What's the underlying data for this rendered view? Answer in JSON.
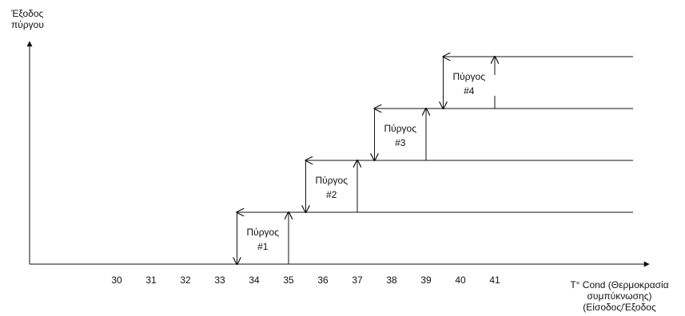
{
  "y_axis_label": [
    "Έξοδος",
    "πύργου"
  ],
  "x_axis_label": [
    "T° Cond (Θερμοκρασία",
    "συμπύκνωσης)",
    "(Είσοδος/Έξοδος"
  ],
  "x_ticks": [
    "30",
    "31",
    "32",
    "33",
    "34",
    "35",
    "36",
    "37",
    "38",
    "39",
    "40",
    "41"
  ],
  "towers": [
    {
      "label_line1": "Πύργος",
      "label_line2": "#1",
      "on_temp": 35,
      "off_temp": 33.5
    },
    {
      "label_line1": "Πύργος",
      "label_line2": "#2",
      "on_temp": 37,
      "off_temp": 35.5
    },
    {
      "label_line1": "Πύργος",
      "label_line2": "#3",
      "on_temp": 39,
      "off_temp": 37.5
    },
    {
      "label_line1": "Πύργος",
      "label_line2": "#4",
      "on_temp": 41,
      "off_temp": 39.5
    }
  ],
  "colors": {
    "line": "#111111",
    "background": "#ffffff"
  }
}
